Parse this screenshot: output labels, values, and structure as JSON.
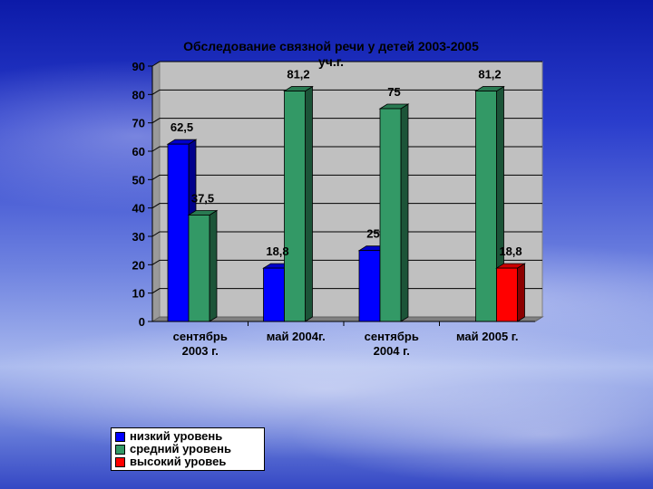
{
  "chart_data": {
    "type": "bar",
    "title": "Обследование связной речи у детей 2003-2005 уч.г.",
    "title_lines": [
      "Обследование связной речи у детей 2003-2005",
      "уч.г."
    ],
    "categories": [
      [
        "сентябрь",
        "2003 г."
      ],
      [
        "май 2004г."
      ],
      [
        "сентябрь",
        "2004 г."
      ],
      [
        "май 2005 г."
      ]
    ],
    "series": [
      {
        "name": "низкий уровень",
        "color": "#0000ff",
        "values": [
          62.5,
          18.8,
          25,
          null
        ],
        "labels": [
          "62,5",
          "18,8",
          "25",
          ""
        ]
      },
      {
        "name": "средний уровень",
        "color": "#339966",
        "values": [
          37.5,
          81.2,
          75,
          81.2
        ],
        "labels": [
          "37,5",
          "81,2",
          "75",
          "81,2"
        ]
      },
      {
        "name": "высокий уровеь",
        "color": "#ff0000",
        "values": [
          null,
          null,
          null,
          18.8
        ],
        "labels": [
          "",
          "",
          "",
          "18,8"
        ]
      }
    ],
    "ylim": [
      0,
      90
    ],
    "yticks": [
      "0",
      "10",
      "20",
      "30",
      "40",
      "50",
      "60",
      "70",
      "80",
      "90"
    ],
    "grid": true,
    "legend_position": "bottom-left"
  }
}
